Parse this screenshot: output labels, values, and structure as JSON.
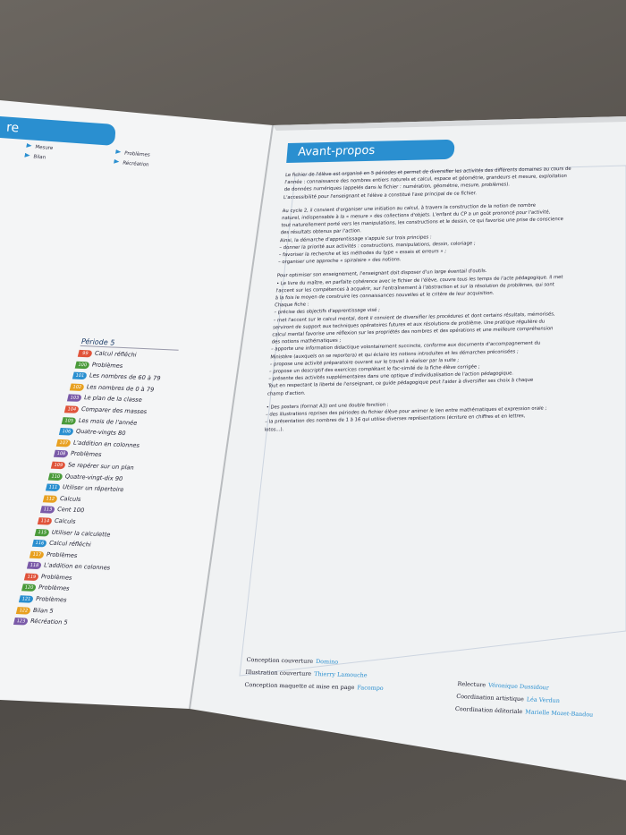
{
  "left_page": {
    "header": "re",
    "legend": [
      "Mesure",
      "Problèmes",
      "Bilan",
      "Récréation"
    ],
    "period_title": "Période 5",
    "items": [
      {
        "number": 99,
        "label": "Calcul réfléchi"
      },
      {
        "number": 100,
        "label": "Problèmes"
      },
      {
        "number": 101,
        "label": "Les nombres de 60 à 79"
      },
      {
        "number": 102,
        "label": "Les nombres de 0 à 79"
      },
      {
        "number": 103,
        "label": "Le plan de la classe"
      },
      {
        "number": 104,
        "label": "Comparer des masses"
      },
      {
        "number": 105,
        "label": "Les mois de l'année"
      },
      {
        "number": 106,
        "label": "Quatre-vingts 80"
      },
      {
        "number": 107,
        "label": "L'addition en colonnes"
      },
      {
        "number": 108,
        "label": "Problèmes"
      },
      {
        "number": 109,
        "label": "Se repérer sur un plan"
      },
      {
        "number": 110,
        "label": "Quatre-vingt-dix 90"
      },
      {
        "number": 111,
        "label": "Utiliser un répertoire"
      },
      {
        "number": 112,
        "label": "Calculs"
      },
      {
        "number": 113,
        "label": "Cent 100"
      },
      {
        "number": 114,
        "label": "Calculs"
      },
      {
        "number": 115,
        "label": "Utiliser la calculette"
      },
      {
        "number": 116,
        "label": "Calcul réfléchi"
      },
      {
        "number": 117,
        "label": "Problèmes"
      },
      {
        "number": 118,
        "label": "L'addition en colonnes"
      },
      {
        "number": 119,
        "label": "Problèmes"
      },
      {
        "number": 120,
        "label": "Problèmes"
      },
      {
        "number": 121,
        "label": "Problèmes"
      },
      {
        "number": 122,
        "label": "Bilan 5"
      },
      {
        "number": 123,
        "label": "Récréation 5"
      }
    ]
  },
  "right_page": {
    "title": "Avant-propos",
    "blocks": [
      [
        "Le fichier de l'élève est organisé en 5 périodes et permet de diversifier les activités des différents domaines au cours de",
        "l'année : connaissance des nombres entiers naturels et calcul, espace et géométrie, grandeurs et mesure, exploitation",
        "de données numériques (appelés dans le fichier : numération, géométrie, mesure, problèmes).",
        "L'accessibilité pour l'enseignant et l'élève a constitué l'axe principal de ce fichier."
      ],
      [
        "Au cycle 2, il convient d'organiser une initiation au calcul, à travers la construction de la notion de nombre",
        "naturel, indispensable à la « mesure » des collections d'objets. L'enfant du CP a un goût prononcé pour l'activité,",
        "tout naturellement porté vers les manipulations, les constructions et le dessin, ce qui favorise une prise de conscience",
        "des résultats obtenus par l'action.",
        "Ainsi, la démarche d'apprentissage s'appuie sur trois principes :",
        "– donner la priorité aux activités : constructions, manipulations, dessin, coloriage ;",
        "– favoriser la recherche et les méthodes du type « essais et erreurs » ;",
        "– organiser une approche « spiralaire » des notions."
      ],
      [
        "Pour optimiser son enseignement, l'enseignant doit disposer d'un large éventail d'outils.",
        "• Le livre du maître, en parfaite cohérence avec le fichier de l'élève, couvre tous les temps de l'acte pédagogique. Il met",
        "l'accent sur les compétences à acquérir, sur l'entraînement à l'abstraction et sur la résolution de problèmes, qui sont",
        "à la fois le moyen de construire les connaissances nouvelles et le critère de leur acquisition.",
        "Chaque fiche :",
        "– précise des objectifs d'apprentissage visé ;",
        "– met l'accent sur le calcul mental, dont il convient de diversifier les procédures et dont certains résultats, mémorisés,",
        "serviront de support aux techniques opératoires futures et aux résolutions de problème. Une pratique régulière du",
        "calcul mental favorise une réflexion sur les propriétés des nombres et des opérations et une meilleure compréhension",
        "des notions mathématiques ;",
        "– apporte une information didactique volontairement succincte, conforme aux documents d'accompagnement du",
        "Ministère (auxquels on se reportera) et qui éclaire les notions introduites et les démarches préconisées ;",
        "– propose une activité préparatoire ouvrant sur le travail à réaliser par la suite ;",
        "– propose un descriptif des exercices complétant le fac-similé de la fiche élève corrigée ;",
        "– présente des activités supplémentaires dans une optique d'individualisation de l'action pédagogique.",
        "Tout en respectant la liberté de l'enseignant, ce guide pédagogique peut l'aider à diversifier ses choix à chaque",
        "champ d'action."
      ],
      [
        "• Des posters (format A3) ont une double fonction :",
        "– des illustrations reprises des périodes du fichier élève pour animer le lien entre mathématiques et expression orale ;",
        "– la présentation des nombres de 1 à 16 qui utilise diverses représentations (écriture en chiffres et en lettres,",
        "lotos...)."
      ]
    ],
    "credits_left": [
      {
        "role": "Conception couverture",
        "name": "Domino"
      },
      {
        "role": "Illustration couverture",
        "name": "Thierry Lamouche"
      },
      {
        "role": "Conception maquette et mise en page",
        "name": "Facompo"
      }
    ],
    "credits_right": [
      {
        "role": "Relecture",
        "name": "Véronique Dussidour"
      },
      {
        "role": "Coordination artistique",
        "name": "Léa Verdun"
      },
      {
        "role": "Coordination éditoriale",
        "name": "Marielle Mozet-Bandou"
      }
    ]
  }
}
